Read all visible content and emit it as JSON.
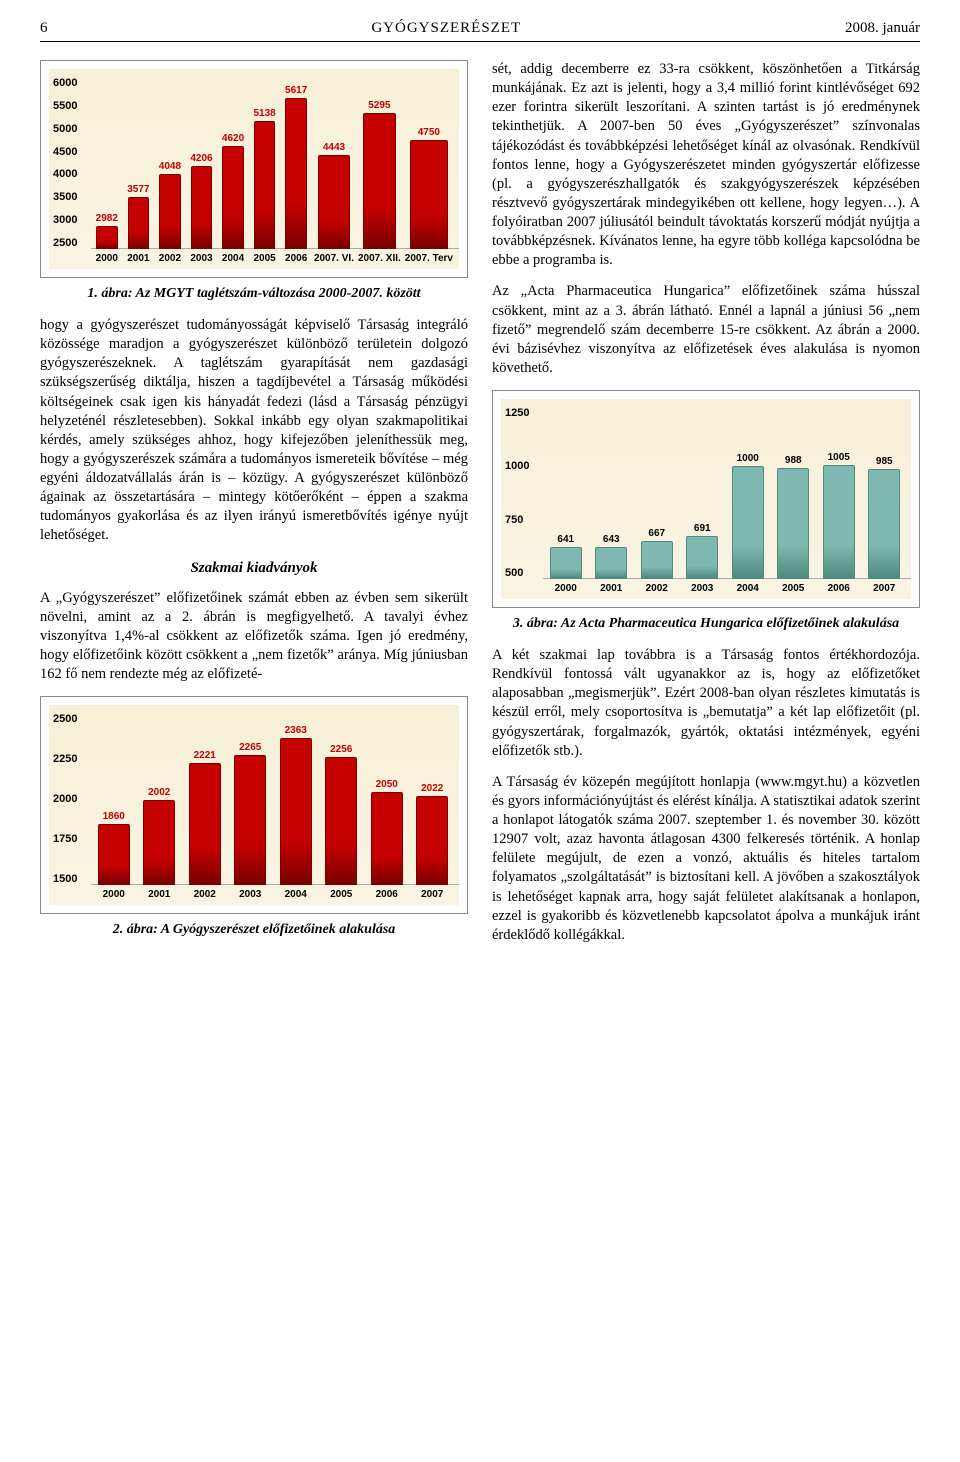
{
  "header": {
    "page_number": "6",
    "title": "GYÓGYSZERÉSZET",
    "date": "2008. január"
  },
  "chart1": {
    "type": "bar",
    "categories": [
      "2000",
      "2001",
      "2002",
      "2003",
      "2004",
      "2005",
      "2006",
      "2007.\nVI.",
      "2007.\nXII.",
      "2007.\nTerv"
    ],
    "values": [
      2982,
      3577,
      4048,
      4206,
      4620,
      5138,
      5617,
      4443,
      5295,
      4750
    ],
    "bar_color": "#c40000",
    "bar_edge": "#7a0000",
    "label_color": "#c40000",
    "background_gradient": [
      "#f7f0d8",
      "#f9f4e2"
    ],
    "ylim": [
      2500,
      6000
    ],
    "yticks": [
      6000,
      5500,
      5000,
      4500,
      4000,
      3500,
      3000,
      2500
    ],
    "caption": "1. ábra: Az MGYT taglétszám-változása 2000-2007. között",
    "bar_width": 0.78,
    "font_family": "Arial",
    "label_fontsize": 10
  },
  "chart2": {
    "type": "bar",
    "categories": [
      "2000",
      "2001",
      "2002",
      "2003",
      "2004",
      "2005",
      "2006",
      "2007"
    ],
    "values": [
      1860,
      2002,
      2221,
      2265,
      2363,
      2256,
      2050,
      2022
    ],
    "bar_color": "#c40000",
    "bar_edge": "#7a0000",
    "label_color": "#c40000",
    "background_gradient": [
      "#f7f0d8",
      "#f9f4e2"
    ],
    "ylim": [
      1500,
      2500
    ],
    "yticks": [
      2500,
      2250,
      2000,
      1750,
      1500
    ],
    "caption": "2. ábra: A Gyógyszerészet előfizetőinek alakulása",
    "bar_width": 0.78,
    "font_family": "Arial",
    "label_fontsize": 10
  },
  "chart3": {
    "type": "bar",
    "categories": [
      "2000",
      "2001",
      "2002",
      "2003",
      "2004",
      "2005",
      "2006",
      "2007"
    ],
    "values": [
      641,
      643,
      667,
      691,
      1000,
      988,
      1005,
      985
    ],
    "bar_color": "#7fb8b0",
    "bar_edge": "#4e8a80",
    "label_color": "#000000",
    "background_gradient": [
      "#f7f0d8",
      "#f9f4e2"
    ],
    "ylim": [
      500,
      1250
    ],
    "yticks": [
      1250,
      1000,
      750,
      500
    ],
    "caption": "3. ábra: Az Acta Pharmaceutica Hungarica előfizetőinek alakulása",
    "bar_width": 0.78,
    "font_family": "Arial",
    "label_fontsize": 10
  },
  "left_col": {
    "para1": "hogy a gyógyszerészet tudományosságát képviselő Társaság integráló közössége maradjon a gyógyszerészet különböző területein dolgozó gyógyszerészeknek. A taglétszám gyarapítását nem gazdasági szükségszerűség diktálja, hiszen a tagdíjbevétel a Társaság működési költségeinek csak igen kis hányadát fedezi (lásd a Társaság pénzügyi helyzeténél részletesebben). Sokkal inkább egy olyan szakmapolitikai kérdés, amely szükséges ahhoz, hogy kifejezőben jeleníthessük meg, hogy a gyógyszerészek számára a tudományos ismereteik bővítése – még egyéni áldozatvállalás árán is – közügy. A gyógyszerészet különböző ágainak az összetartására – mintegy kötőerőként – éppen a szakma tudományos gyakorlása és az ilyen irányú ismeretbővítés igénye nyújt lehetőséget.",
    "heading": "Szakmai kiadványok",
    "para2": "A „Gyógyszerészet” előfizetőinek számát ebben az évben sem sikerült növelni, amint az a 2. ábrán is megfigyelhető. A tavalyi évhez viszonyítva 1,4%-al csökkent az előfizetők száma. Igen jó eredmény, hogy előfizetőink között csökkent a „nem fizetők” aránya. Míg júniusban 162 fő nem rendezte még az előfizeté-"
  },
  "right_col": {
    "para1": "sét, addig decemberre ez 33-ra csökkent, köszönhetően a Titkárság munkájának. Ez azt is jelenti, hogy a 3,4 millió forint kintlévőséget 692 ezer forintra sikerült leszorítani. A szinten tartást is jó eredménynek tekinthetjük. A 2007-ben 50 éves „Gyógyszerészet” színvonalas tájékozódást és továbbképzési lehetőséget kínál az olvasónak. Rendkívül fontos lenne, hogy a Gyógyszerészetet minden gyógyszertár előfizesse (pl. a gyógyszerészhallgatók és szakgyógyszerészek képzésében résztvevő gyógyszertárak mindegyikében ott kellene, hogy legyen…). A folyóiratban 2007 júliusától beindult távoktatás korszerű módját nyújtja a továbbképzésnek. Kívánatos lenne, ha egyre több kolléga kapcsolódna be ebbe a programba is.",
    "para2": "Az „Acta Pharmaceutica Hungarica” előfizetőinek száma hússzal csökkent, mint az a 3. ábrán látható. Ennél a lapnál a júniusi 56 „nem fizető” megrendelő szám decemberre 15-re csökkent. Az ábrán a 2000. évi bázisévhez viszonyítva az előfizetések éves alakulása is nyomon követhető.",
    "para3": "A két szakmai lap továbbra is a Társaság fontos értékhordozója. Rendkívül fontossá vált ugyanakkor az is, hogy az előfizetőket alaposabban „megismerjük”. Ezért 2008-ban olyan részletes kimutatás is készül erről, mely csoportosítva is „bemutatja” a két lap előfizetőit (pl. gyógyszertárak, forgalmazók, gyártók, oktatási intézmények, egyéni előfizetők stb.).",
    "para4": "A Társaság év közepén megújított honlapja (www.mgyt.hu) a közvetlen és gyors információnyújtást és elérést kínálja. A statisztikai adatok szerint a honlapot látogatók száma 2007. szeptember 1. és november 30. között 12907 volt, azaz havonta átlagosan 4300 felkeresés történik. A honlap felülete megújult, de ezen a vonzó, aktuális és hiteles tartalom folyamatos „szolgáltatását” is biztosítani kell. A jövőben a szakosztályok is lehetőséget kapnak arra, hogy saját felületet alakítsanak a honlapon, ezzel is gyakoribb és közvetlenebb kapcsolatot ápolva a munkájuk iránt érdeklődő kollégákkal."
  }
}
